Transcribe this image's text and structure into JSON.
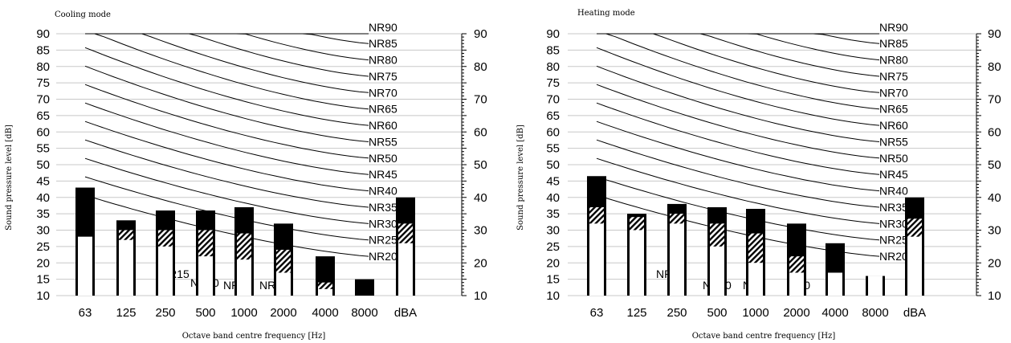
{
  "chart_data": [
    {
      "type": "bar",
      "title": "Cooling mode",
      "xlabel": "Octave band centre frequency [Hz]",
      "ylabel": "Sound pressure level [dB]",
      "ylim": [
        10,
        90
      ],
      "yticks": [
        10,
        15,
        20,
        25,
        30,
        35,
        40,
        45,
        50,
        55,
        60,
        65,
        70,
        75,
        80,
        85,
        90
      ],
      "yticks_right": [
        10,
        20,
        30,
        40,
        50,
        60,
        70,
        80,
        90
      ],
      "categories": [
        "63",
        "125",
        "250",
        "500",
        "1000",
        "2000",
        "4000",
        "8000",
        "dBA"
      ],
      "series": [
        {
          "values": [
            28,
            27,
            25,
            22,
            21,
            17,
            12,
            null,
            26
          ]
        },
        {
          "values": [
            null,
            30,
            30,
            30,
            29,
            24,
            14,
            null,
            32
          ]
        },
        {
          "values": [
            43,
            33,
            36,
            36,
            37,
            32,
            22,
            15,
            40
          ]
        }
      ],
      "nr_curves": [
        "NR90",
        "NR85",
        "NR80",
        "NR75",
        "NR70",
        "NR65",
        "NR60",
        "NR55",
        "NR50",
        "NR45",
        "NR40",
        "NR35",
        "NR30",
        "NR25",
        "NR20",
        "NR15",
        "NR10",
        "NR5",
        "NR0"
      ],
      "grid": true
    },
    {
      "type": "bar",
      "title": "Heating mode",
      "xlabel": "Octave band centre frequency [Hz]",
      "ylabel": "Sound pressure level [dB]",
      "ylim": [
        10,
        90
      ],
      "yticks": [
        10,
        15,
        20,
        25,
        30,
        35,
        40,
        45,
        50,
        55,
        60,
        65,
        70,
        75,
        80,
        85,
        90
      ],
      "yticks_right": [
        10,
        20,
        30,
        40,
        50,
        60,
        70,
        80,
        90
      ],
      "categories": [
        "63",
        "125",
        "250",
        "500",
        "1000",
        "2000",
        "4000",
        "8000",
        "dBA"
      ],
      "series": [
        {
          "values": [
            32,
            30,
            32,
            25,
            20,
            17,
            17,
            16,
            28
          ]
        },
        {
          "values": [
            37,
            34,
            35,
            32,
            29,
            22,
            null,
            null,
            33.5
          ]
        },
        {
          "values": [
            46.5,
            35,
            38,
            37,
            36.5,
            32,
            26,
            16,
            40
          ]
        }
      ],
      "nr_curves": [
        "NR90",
        "NR85",
        "NR80",
        "NR75",
        "NR70",
        "NR65",
        "NR60",
        "NR55",
        "NR50",
        "NR45",
        "NR40",
        "NR35",
        "NR30",
        "NR25",
        "NR20",
        "NR15",
        "NR10",
        "NR5",
        "NR0"
      ],
      "grid": true
    }
  ]
}
